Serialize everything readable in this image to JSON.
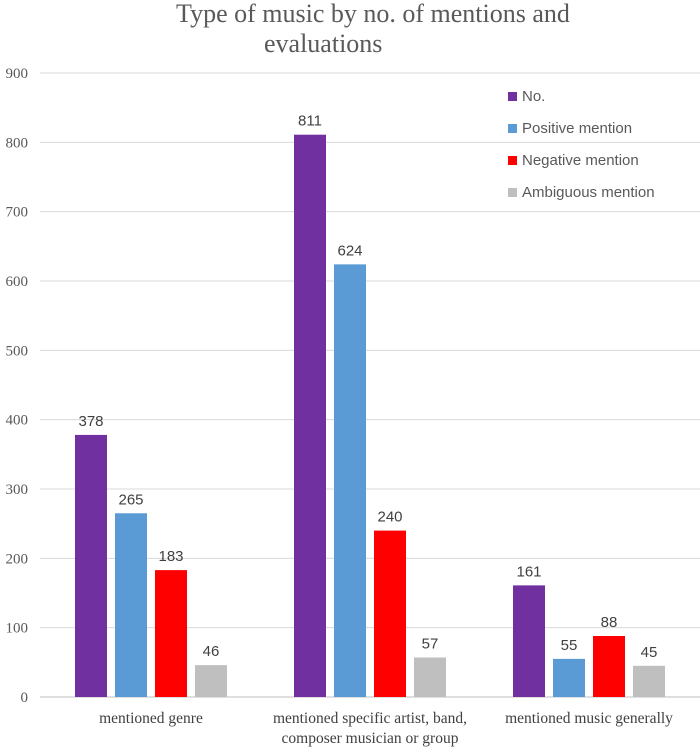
{
  "chart_data": {
    "type": "bar",
    "title_lines": [
      "Type of music by no. of mentions and",
      "evaluations"
    ],
    "xlabel": "",
    "ylabel": "",
    "ylim": [
      0,
      900
    ],
    "yticks": [
      0,
      100,
      200,
      300,
      400,
      500,
      600,
      700,
      800,
      900
    ],
    "grid": true,
    "legend_position": "top-right",
    "categories": [
      [
        "mentioned genre"
      ],
      [
        "mentioned specific artist, band,",
        "composer musician or group"
      ],
      [
        "mentioned music generally"
      ]
    ],
    "series": [
      {
        "name": "No.",
        "color": "#7030a0",
        "values": [
          378,
          811,
          161
        ]
      },
      {
        "name": "Positive mention",
        "color": "#5b9bd5",
        "values": [
          265,
          624,
          55
        ]
      },
      {
        "name": "Negative mention",
        "color": "#ff0000",
        "values": [
          183,
          240,
          88
        ]
      },
      {
        "name": "Ambiguous mention",
        "color": "#bfbfbf",
        "values": [
          46,
          57,
          45
        ]
      }
    ]
  }
}
